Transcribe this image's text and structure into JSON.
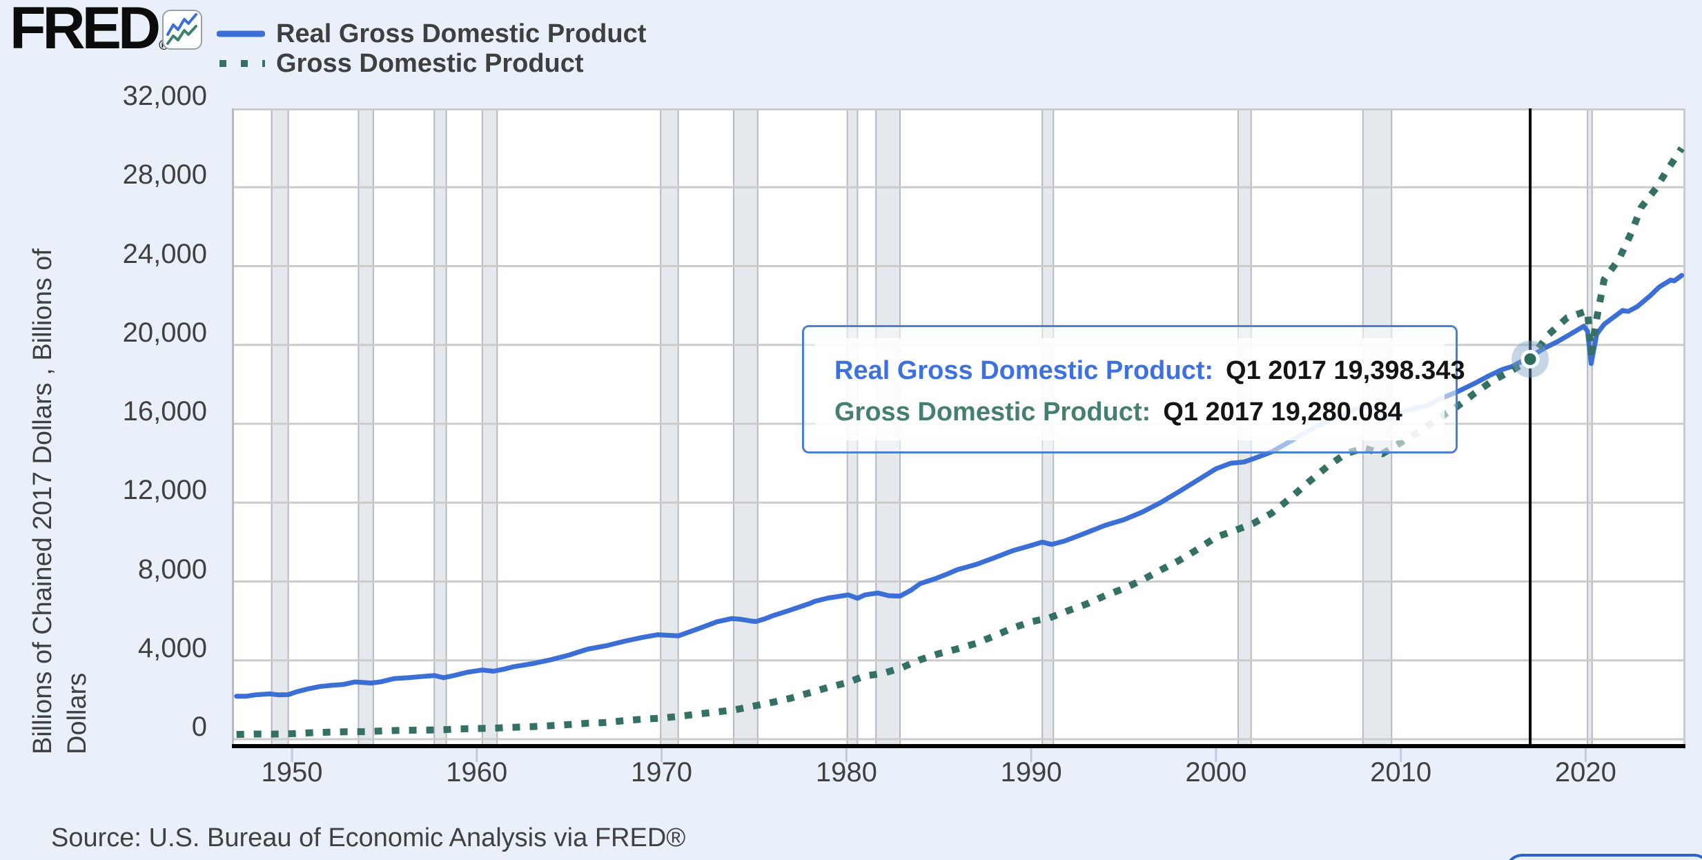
{
  "header": {
    "logo_text": "FRED",
    "logo_reg": "®"
  },
  "legend": {
    "items": [
      {
        "label": "Real Gross Domestic Product",
        "style": "solid",
        "color": "#3c6fd6"
      },
      {
        "label": "Gross Domestic Product",
        "style": "dotted",
        "color": "#357064"
      }
    ]
  },
  "y_axis_label": {
    "line1": "Billions of Chained 2017 Dollars , Billions of",
    "line2": "Dollars"
  },
  "tooltip": {
    "rows": [
      {
        "label": "Real Gross Domestic Product:",
        "value": "Q1 2017 19,398.343",
        "color": "#3e71dd"
      },
      {
        "label": "Gross Domestic Product:",
        "value": "Q1 2017 19,280.084",
        "color": "#45806e"
      }
    ]
  },
  "source": {
    "text": "Source: U.S. Bureau of Economic Analysis via FRED®"
  },
  "colors": {
    "background": "#e9f0fa",
    "plot_bg": "#ffffff",
    "gridline": "#cbcbcb",
    "plot_border": "#b7babf",
    "recession_fill": "#e5e8ec",
    "recession_edge": "#b5bac1",
    "axis_line": "#000000",
    "crosshair": "#000000",
    "tick_stub": "#bfcbe4",
    "tooltip_border": "#4a80d0",
    "marker_halo": "rgba(125,162,197,0.45)",
    "marker_dot": "#2e6b5f"
  },
  "chart_data": {
    "type": "line",
    "title": "Real Gross Domestic Product vs Gross Domestic Product",
    "xlabel": "",
    "ylabel": "Billions of Chained 2017 Dollars , Billions of Dollars",
    "grid": true,
    "legend_position": "top-left",
    "x_axis": {
      "range": [
        1946.75,
        2025.4
      ],
      "ticks": [
        1950,
        1960,
        1970,
        1980,
        1990,
        2000,
        2010,
        2020
      ],
      "tick_labels": [
        "1950",
        "1960",
        "1970",
        "1980",
        "1990",
        "2000",
        "2010",
        "2020"
      ]
    },
    "y_axis": {
      "range": [
        0,
        32000
      ],
      "tick_values": [
        0,
        4000,
        8000,
        12000,
        16000,
        20000,
        24000,
        28000,
        32000
      ],
      "tick_labels": [
        "0",
        "4,000",
        "8,000",
        "12,000",
        "16,000",
        "20,000",
        "24,000",
        "28,000",
        "32,000"
      ]
    },
    "crosshair_year": 2017.0,
    "marker": {
      "year": 2017.0,
      "value": 19280.084,
      "series": "Gross Domestic Product"
    },
    "recessions": [
      [
        1948.9,
        1949.8
      ],
      [
        1953.6,
        1954.4
      ],
      [
        1957.7,
        1958.35
      ],
      [
        1960.3,
        1961.1
      ],
      [
        1969.95,
        1970.9
      ],
      [
        1973.9,
        1975.2
      ],
      [
        1980.05,
        1980.6
      ],
      [
        1981.6,
        1982.9
      ],
      [
        1990.6,
        1991.2
      ],
      [
        2001.2,
        2001.9
      ],
      [
        2007.95,
        2009.5
      ],
      [
        2020.1,
        2020.35
      ]
    ],
    "series": [
      {
        "name": "Real Gross Domestic Product",
        "units": "Billions of Chained 2017 Dollars",
        "style": "solid",
        "color": "#3c6fd6",
        "points": [
          [
            1947,
            2182
          ],
          [
            1947.5,
            2176
          ],
          [
            1948,
            2248
          ],
          [
            1948.8,
            2300
          ],
          [
            1949.3,
            2248
          ],
          [
            1949.8,
            2260
          ],
          [
            1950.2,
            2390
          ],
          [
            1950.8,
            2540
          ],
          [
            1951.5,
            2670
          ],
          [
            1952,
            2720
          ],
          [
            1952.8,
            2780
          ],
          [
            1953.4,
            2905
          ],
          [
            1953.8,
            2880
          ],
          [
            1954.3,
            2850
          ],
          [
            1954.8,
            2910
          ],
          [
            1955.5,
            3070
          ],
          [
            1956.3,
            3120
          ],
          [
            1957,
            3180
          ],
          [
            1957.7,
            3230
          ],
          [
            1958.2,
            3120
          ],
          [
            1958.8,
            3240
          ],
          [
            1959.5,
            3400
          ],
          [
            1960.3,
            3510
          ],
          [
            1960.9,
            3450
          ],
          [
            1961.5,
            3560
          ],
          [
            1962,
            3680
          ],
          [
            1963,
            3830
          ],
          [
            1964,
            4030
          ],
          [
            1965,
            4270
          ],
          [
            1966,
            4570
          ],
          [
            1967,
            4740
          ],
          [
            1968,
            4970
          ],
          [
            1969,
            5170
          ],
          [
            1969.8,
            5300
          ],
          [
            1970.4,
            5270
          ],
          [
            1970.9,
            5240
          ],
          [
            1971.5,
            5440
          ],
          [
            1972,
            5610
          ],
          [
            1973,
            5960
          ],
          [
            1973.8,
            6120
          ],
          [
            1974.3,
            6080
          ],
          [
            1974.8,
            6000
          ],
          [
            1975.1,
            5970
          ],
          [
            1975.6,
            6110
          ],
          [
            1976,
            6260
          ],
          [
            1977,
            6560
          ],
          [
            1978,
            6880
          ],
          [
            1978.3,
            7000
          ],
          [
            1979,
            7160
          ],
          [
            1980.1,
            7320
          ],
          [
            1980.6,
            7150
          ],
          [
            1981,
            7320
          ],
          [
            1981.7,
            7420
          ],
          [
            1982.3,
            7280
          ],
          [
            1982.9,
            7260
          ],
          [
            1983.5,
            7560
          ],
          [
            1984,
            7900
          ],
          [
            1984.8,
            8140
          ],
          [
            1985.5,
            8400
          ],
          [
            1986,
            8600
          ],
          [
            1987,
            8860
          ],
          [
            1988,
            9200
          ],
          [
            1989,
            9560
          ],
          [
            1990,
            9830
          ],
          [
            1990.6,
            10000
          ],
          [
            1991.1,
            9880
          ],
          [
            1991.8,
            10050
          ],
          [
            1992.5,
            10300
          ],
          [
            1993,
            10480
          ],
          [
            1994,
            10850
          ],
          [
            1995,
            11130
          ],
          [
            1996,
            11520
          ],
          [
            1997,
            12000
          ],
          [
            1998,
            12560
          ],
          [
            1999,
            13140
          ],
          [
            2000,
            13720
          ],
          [
            2000.8,
            14000
          ],
          [
            2001.5,
            14060
          ],
          [
            2002,
            14220
          ],
          [
            2003,
            14570
          ],
          [
            2004,
            15100
          ],
          [
            2005,
            15660
          ],
          [
            2006,
            16130
          ],
          [
            2007,
            16500
          ],
          [
            2007.9,
            16880
          ],
          [
            2008.5,
            16800
          ],
          [
            2008.8,
            16500
          ],
          [
            2009.4,
            16220
          ],
          [
            2010,
            16580
          ],
          [
            2010.8,
            16800
          ],
          [
            2011.5,
            16950
          ],
          [
            2012,
            17220
          ],
          [
            2013,
            17600
          ],
          [
            2014,
            18050
          ],
          [
            2014.8,
            18450
          ],
          [
            2015.5,
            18760
          ],
          [
            2016,
            18900
          ],
          [
            2017,
            19398.343
          ],
          [
            2017.8,
            19850
          ],
          [
            2018.5,
            20180
          ],
          [
            2019,
            20450
          ],
          [
            2019.9,
            20950
          ],
          [
            2020.1,
            20700
          ],
          [
            2020.3,
            19056
          ],
          [
            2020.6,
            20550
          ],
          [
            2021,
            21050
          ],
          [
            2021.5,
            21400
          ],
          [
            2022,
            21750
          ],
          [
            2022.3,
            21700
          ],
          [
            2022.8,
            21950
          ],
          [
            2023.5,
            22500
          ],
          [
            2024,
            22950
          ],
          [
            2024.6,
            23290
          ],
          [
            2024.8,
            23250
          ],
          [
            2025.2,
            23526
          ]
        ]
      },
      {
        "name": "Gross Domestic Product",
        "units": "Billions of Dollars",
        "style": "dotted",
        "color": "#357064",
        "points": [
          [
            1947,
            243
          ],
          [
            1948,
            262
          ],
          [
            1949,
            260
          ],
          [
            1950,
            280
          ],
          [
            1951,
            328
          ],
          [
            1952,
            358
          ],
          [
            1953,
            380
          ],
          [
            1954,
            380
          ],
          [
            1955,
            426
          ],
          [
            1956,
            450
          ],
          [
            1957,
            462
          ],
          [
            1958,
            468
          ],
          [
            1959,
            522
          ],
          [
            1960,
            542
          ],
          [
            1961,
            562
          ],
          [
            1962,
            605
          ],
          [
            1963,
            638
          ],
          [
            1964,
            685
          ],
          [
            1965,
            742
          ],
          [
            1966,
            813
          ],
          [
            1967,
            846
          ],
          [
            1968,
            942
          ],
          [
            1969,
            1020
          ],
          [
            1970,
            1073
          ],
          [
            1971,
            1165
          ],
          [
            1972,
            1282
          ],
          [
            1973,
            1383
          ],
          [
            1974,
            1500
          ],
          [
            1975,
            1684
          ],
          [
            1976,
            1873
          ],
          [
            1977,
            2082
          ],
          [
            1978,
            2352
          ],
          [
            1979,
            2627
          ],
          [
            1980,
            2857
          ],
          [
            1981,
            3207
          ],
          [
            1982,
            3344
          ],
          [
            1983,
            3634
          ],
          [
            1984,
            4038
          ],
          [
            1985,
            4339
          ],
          [
            1986,
            4580
          ],
          [
            1987,
            4855
          ],
          [
            1988,
            5236
          ],
          [
            1989,
            5642
          ],
          [
            1990,
            5963
          ],
          [
            1991,
            6158
          ],
          [
            1992,
            6520
          ],
          [
            1993,
            6859
          ],
          [
            1994,
            7287
          ],
          [
            1995,
            7640
          ],
          [
            1996,
            8073
          ],
          [
            1997,
            8578
          ],
          [
            1998,
            9063
          ],
          [
            1999,
            9631
          ],
          [
            2000,
            10251
          ],
          [
            2001,
            10582
          ],
          [
            2002,
            10936
          ],
          [
            2003,
            11458
          ],
          [
            2004,
            12214
          ],
          [
            2005,
            13037
          ],
          [
            2006,
            13815
          ],
          [
            2007,
            14474
          ],
          [
            2008,
            14770
          ],
          [
            2009,
            14478
          ],
          [
            2010,
            15049
          ],
          [
            2011,
            15600
          ],
          [
            2012,
            16254
          ],
          [
            2013,
            16843
          ],
          [
            2014,
            17551
          ],
          [
            2015,
            18206
          ],
          [
            2016,
            18695
          ],
          [
            2017,
            19280.084
          ],
          [
            2018,
            20533
          ],
          [
            2019,
            21381
          ],
          [
            2020.1,
            21727
          ],
          [
            2020.3,
            19636
          ],
          [
            2020.6,
            21350
          ],
          [
            2021,
            23315
          ],
          [
            2021.8,
            24350
          ],
          [
            2022.5,
            25740
          ],
          [
            2023,
            26970
          ],
          [
            2023.8,
            27940
          ],
          [
            2024.4,
            28850
          ],
          [
            2025.2,
            29977
          ]
        ]
      }
    ]
  }
}
